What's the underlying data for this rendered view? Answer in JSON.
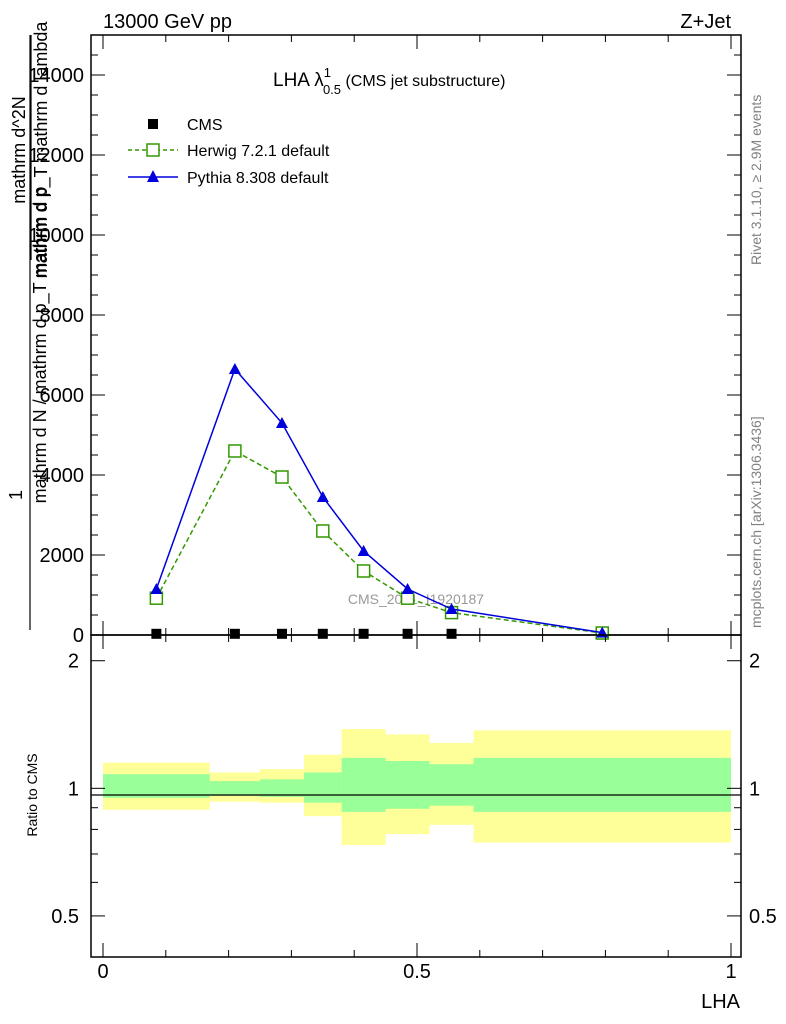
{
  "header": {
    "energy_label": "13000 GeV pp",
    "process_label": "Z+Jet"
  },
  "side_labels": {
    "rivet": "Rivet 3.1.10, ≥ 2.9M events",
    "mcplots": "mcplots.cern.ch [arXiv:1306.3436]"
  },
  "watermark": "CMS_2021_I1920187",
  "main_plot": {
    "title_main": "LHA λ",
    "title_sup": "1",
    "title_sub": "0.5",
    "title_suffix": " (CMS jet substructure)",
    "ylabel_num_a": "1",
    "ylabel_den_a": "mathrm d N / mathrm d p_T mathrm d p",
    "ylabel_num_b": "mathrm d^2N",
    "ylabel_den_b": "mathrm d p_T mathrm d lambda",
    "ytick_labels": [
      "0",
      "2000",
      "4000",
      "6000",
      "8000",
      "10000",
      "12000",
      "14000"
    ]
  },
  "ratio_plot": {
    "ylabel": "Ratio to CMS",
    "ytick_labels": [
      "0.5",
      "1",
      "2"
    ],
    "xtick_labels": [
      "0",
      "0.5",
      "1"
    ],
    "xlabel": "LHA"
  },
  "legend": {
    "entries": [
      {
        "label": "CMS"
      },
      {
        "label": "Herwig 7.2.1 default"
      },
      {
        "label": "Pythia 8.308 default"
      }
    ]
  },
  "chart_data": {
    "type": "line",
    "title": "LHA λ^1_0.5 (CMS jet substructure)",
    "xlabel": "LHA",
    "xlim": [
      0,
      1
    ],
    "ylim": [
      0,
      15000
    ],
    "x": [
      0.085,
      0.21,
      0.285,
      0.35,
      0.415,
      0.485,
      0.555,
      0.795
    ],
    "bin_edges": [
      0,
      0.17,
      0.25,
      0.32,
      0.38,
      0.45,
      0.52,
      0.59,
      1.0
    ],
    "series": [
      {
        "name": "CMS",
        "color": "#000000",
        "marker": "square",
        "values": [
          30,
          30,
          30,
          30,
          30,
          30,
          30,
          10
        ]
      },
      {
        "name": "Herwig 7.2.1 default",
        "color": "#339900",
        "marker": "open-square",
        "dash": "dashed",
        "values": [
          920,
          4600,
          3950,
          2600,
          1600,
          920,
          560,
          50
        ]
      },
      {
        "name": "Pythia 8.308 default",
        "color": "#0000dd",
        "marker": "triangle",
        "values": [
          1150,
          6650,
          5300,
          3450,
          2100,
          1150,
          650,
          60
        ]
      }
    ],
    "ratio": {
      "ylabel": "Ratio to CMS",
      "log_y": true,
      "ylim": [
        0.4,
        2.3
      ],
      "inner_band": [
        [
          0.95,
          1.08
        ],
        [
          0.96,
          1.04
        ],
        [
          0.955,
          1.05
        ],
        [
          0.925,
          1.09
        ],
        [
          0.88,
          1.18
        ],
        [
          0.895,
          1.16
        ],
        [
          0.91,
          1.14
        ],
        [
          0.88,
          1.18
        ]
      ],
      "outer_band": [
        [
          0.89,
          1.15
        ],
        [
          0.93,
          1.09
        ],
        [
          0.925,
          1.11
        ],
        [
          0.86,
          1.2
        ],
        [
          0.735,
          1.38
        ],
        [
          0.78,
          1.34
        ],
        [
          0.82,
          1.28
        ],
        [
          0.745,
          1.37
        ]
      ]
    }
  }
}
